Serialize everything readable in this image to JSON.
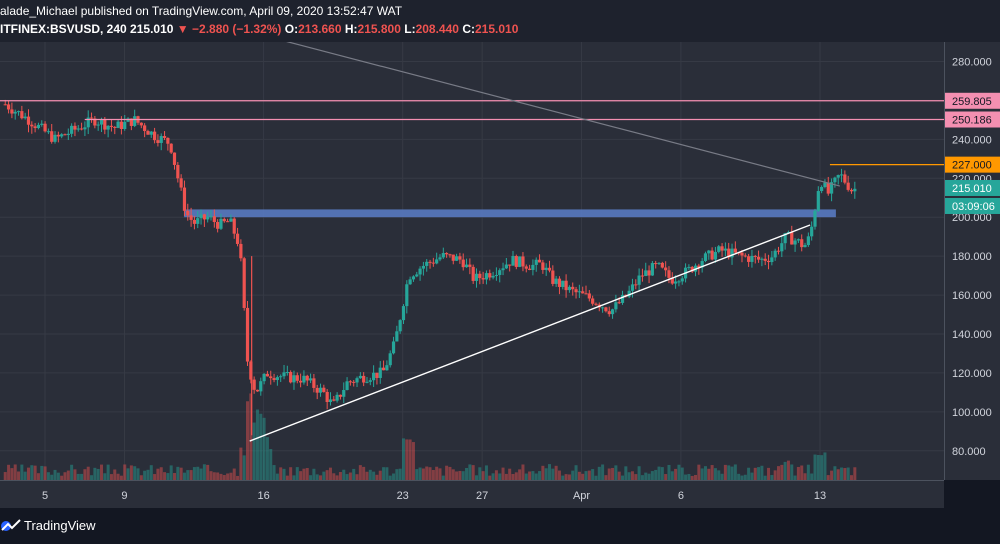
{
  "header": {
    "author": "alade_Michael",
    "published": "published on TradingView.com, April 09, 2020 13:52:47 WAT",
    "symbol": "ITFINEX:BSVUSD, 240",
    "last": "215.010",
    "change": "−2.880 (−1.32%)",
    "o_label": "O:",
    "o_value": "213.660",
    "h_label": "H:",
    "h_value": "215.800",
    "l_label": "L:",
    "l_value": "208.440",
    "c_label": "C:",
    "c_value": "215.010"
  },
  "footer": {
    "brand": "TradingView"
  },
  "colors": {
    "up": "#26a69a",
    "down": "#ef5350",
    "resistance": "#f48fb1",
    "orange": "#ff9800",
    "support_zone": "#5b7ec9",
    "trendline": "#ffffff",
    "grid": "#363a45"
  },
  "chart_data": {
    "type": "candlestick",
    "title": "BSVUSD 240",
    "xlabel": "",
    "ylabel": "",
    "ylim": [
      65,
      290
    ],
    "x_ticks": [
      "5",
      "9",
      "16",
      "23",
      "27",
      "Apr",
      "6",
      "13"
    ],
    "y_ticks": [
      "80.000",
      "100.000",
      "120.000",
      "140.000",
      "160.000",
      "180.000",
      "200.000",
      "220.000",
      "240.000",
      "260.000",
      "280.000"
    ],
    "price_labels": [
      {
        "value": 259.805,
        "text": "259.805",
        "color": "#f48fb1"
      },
      {
        "value": 250.186,
        "text": "250.186",
        "color": "#f48fb1"
      },
      {
        "value": 227.0,
        "text": "227.000",
        "color": "#ff9800"
      },
      {
        "value": 215.01,
        "text": "215.010",
        "color": "#26a69a"
      }
    ],
    "countdown": "03:09:06",
    "horizontal_lines": [
      {
        "value": 259.805,
        "color": "#f48fb1"
      },
      {
        "value": 250.186,
        "color": "#f48fb1"
      },
      {
        "value": 227.0,
        "color": "#ff9800"
      }
    ],
    "support_zone": [
      200,
      204
    ],
    "trendline_support": {
      "from": [
        12.3,
        85
      ],
      "to": [
        40.5,
        196
      ]
    },
    "trendline_resistance": {
      "from": [
        10.5,
        300
      ],
      "to": [
        42,
        216
      ]
    },
    "price_path": [
      [
        0,
        258
      ],
      [
        1.2,
        250
      ],
      [
        2.5,
        240
      ],
      [
        3.7,
        246
      ],
      [
        4.5,
        250
      ],
      [
        5.5,
        246
      ],
      [
        6.5,
        250
      ],
      [
        7.5,
        242
      ],
      [
        8.3,
        238
      ],
      [
        8.8,
        215
      ],
      [
        9.1,
        202
      ],
      [
        9.5,
        197
      ],
      [
        10.2,
        200
      ],
      [
        10.8,
        196
      ],
      [
        11.3,
        198
      ],
      [
        11.8,
        185
      ],
      [
        12.2,
        125
      ],
      [
        12.6,
        110
      ],
      [
        13.2,
        120
      ],
      [
        14.0,
        118
      ],
      [
        15.0,
        117
      ],
      [
        16.0,
        110
      ],
      [
        16.5,
        103
      ],
      [
        17.2,
        115
      ],
      [
        18.0,
        118
      ],
      [
        19.0,
        120
      ],
      [
        19.6,
        135
      ],
      [
        20.3,
        170
      ],
      [
        21.0,
        175
      ],
      [
        22.0,
        180
      ],
      [
        23.0,
        178
      ],
      [
        23.6,
        168
      ],
      [
        24.5,
        172
      ],
      [
        25.5,
        178
      ],
      [
        26.5,
        175
      ],
      [
        27.0,
        176
      ],
      [
        27.5,
        168
      ],
      [
        28.5,
        162
      ],
      [
        29.5,
        158
      ],
      [
        30.5,
        152
      ],
      [
        31.3,
        160
      ],
      [
        32.0,
        170
      ],
      [
        32.8,
        175
      ],
      [
        33.5,
        168
      ],
      [
        34.3,
        172
      ],
      [
        35.0,
        178
      ],
      [
        36.0,
        183
      ],
      [
        37.0,
        180
      ],
      [
        38.0,
        178
      ],
      [
        38.6,
        180
      ],
      [
        39.3,
        190
      ],
      [
        39.8,
        188
      ],
      [
        40.2,
        185
      ],
      [
        40.5,
        190
      ],
      [
        41.0,
        220
      ],
      [
        41.4,
        212
      ],
      [
        42.0,
        222
      ],
      [
        42.6,
        214
      ],
      [
        42.9,
        215
      ]
    ],
    "volume_spikes": [
      {
        "x": 12.4,
        "h": 1.0
      },
      {
        "x": 12.8,
        "h": 0.7
      },
      {
        "x": 20.3,
        "h": 0.75
      },
      {
        "x": 41.0,
        "h": 0.45
      },
      {
        "x": 39.3,
        "h": 0.3
      }
    ]
  }
}
